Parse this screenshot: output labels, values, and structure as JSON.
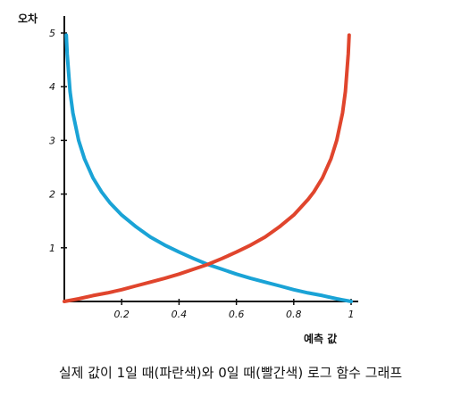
{
  "caption": "실제 값이 1일 때(파란색)와 0일 때(빨간색) 로그 함수 그래프",
  "chart_data": {
    "type": "line",
    "title": "",
    "xlabel": "예측 값",
    "ylabel": "오차",
    "xlim": [
      0,
      1
    ],
    "ylim": [
      0,
      5
    ],
    "x_ticks": [
      "0.2",
      "0.4",
      "0.6",
      "0.8",
      "1"
    ],
    "x_tick_values": [
      0.2,
      0.4,
      0.6,
      0.8,
      1.0
    ],
    "y_ticks": [
      "1",
      "2",
      "3",
      "4",
      "5"
    ],
    "y_tick_values": [
      1,
      2,
      3,
      4,
      5
    ],
    "grid": false,
    "legend": "none",
    "series": [
      {
        "color": "#1aa3d6",
        "x": [
          0.007,
          0.01,
          0.02,
          0.03,
          0.05,
          0.07,
          0.1,
          0.13,
          0.16,
          0.2,
          0.25,
          0.3,
          0.35,
          0.4,
          0.45,
          0.5,
          0.55,
          0.6,
          0.65,
          0.7,
          0.75,
          0.8,
          0.85,
          0.9,
          0.95,
          1.0
        ],
        "y": [
          4.96,
          4.61,
          3.91,
          3.51,
          3.0,
          2.66,
          2.3,
          2.04,
          1.83,
          1.61,
          1.39,
          1.2,
          1.05,
          0.92,
          0.8,
          0.69,
          0.6,
          0.51,
          0.43,
          0.36,
          0.29,
          0.22,
          0.16,
          0.11,
          0.05,
          0.0
        ]
      },
      {
        "color": "#e0452d",
        "x": [
          0.0,
          0.05,
          0.1,
          0.15,
          0.2,
          0.25,
          0.3,
          0.35,
          0.4,
          0.45,
          0.5,
          0.55,
          0.6,
          0.65,
          0.7,
          0.75,
          0.8,
          0.85,
          0.87,
          0.9,
          0.93,
          0.95,
          0.97,
          0.98,
          0.99,
          0.993
        ],
        "y": [
          0.0,
          0.05,
          0.11,
          0.16,
          0.22,
          0.29,
          0.36,
          0.43,
          0.51,
          0.6,
          0.69,
          0.8,
          0.92,
          1.05,
          1.2,
          1.39,
          1.61,
          1.9,
          2.04,
          2.3,
          2.66,
          3.0,
          3.51,
          3.91,
          4.61,
          4.96
        ]
      }
    ]
  }
}
